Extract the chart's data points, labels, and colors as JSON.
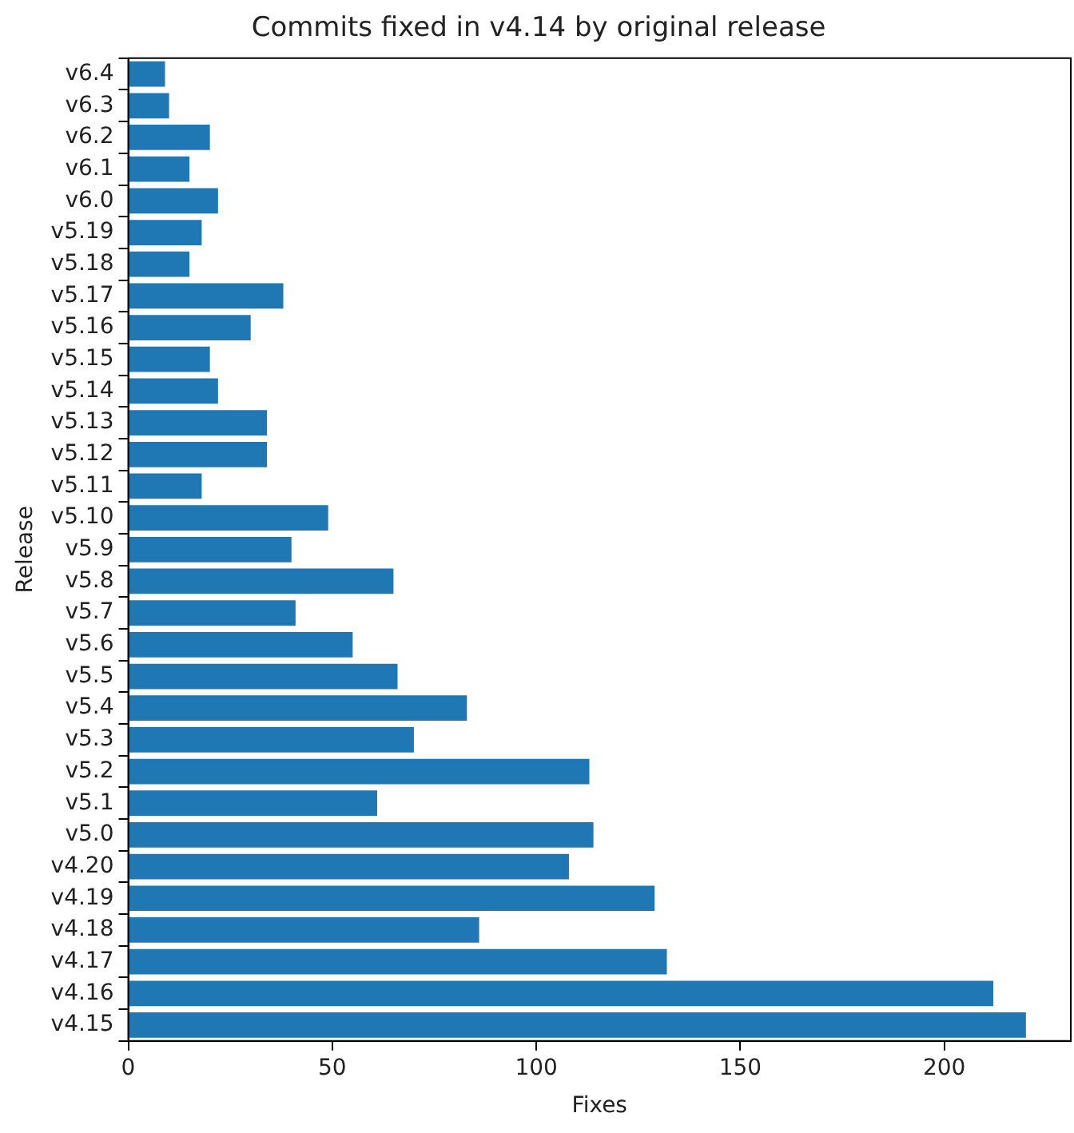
{
  "chart_data": {
    "type": "bar",
    "orientation": "horizontal",
    "title": "Commits fixed in v4.14 by original release",
    "xlabel": "Fixes",
    "ylabel": "Release",
    "categories": [
      "v6.4",
      "v6.3",
      "v6.2",
      "v6.1",
      "v6.0",
      "v5.19",
      "v5.18",
      "v5.17",
      "v5.16",
      "v5.15",
      "v5.14",
      "v5.13",
      "v5.12",
      "v5.11",
      "v5.10",
      "v5.9",
      "v5.8",
      "v5.7",
      "v5.6",
      "v5.5",
      "v5.4",
      "v5.3",
      "v5.2",
      "v5.1",
      "v5.0",
      "v4.20",
      "v4.19",
      "v4.18",
      "v4.17",
      "v4.16",
      "v4.15"
    ],
    "values": [
      9,
      10,
      20,
      15,
      22,
      18,
      15,
      38,
      30,
      20,
      22,
      34,
      34,
      18,
      49,
      40,
      65,
      41,
      55,
      66,
      83,
      70,
      113,
      61,
      114,
      108,
      129,
      86,
      132,
      212,
      220
    ],
    "color": "#1f77b4",
    "xlim": [
      0,
      231
    ],
    "xticks": [
      0,
      50,
      100,
      150,
      200
    ],
    "grid": false,
    "legend": false
  }
}
